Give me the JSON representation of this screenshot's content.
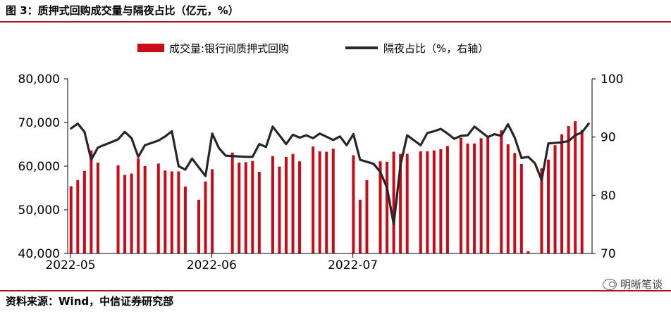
{
  "header": {
    "title": "图 3：质押式回购成交量与隔夜占比（亿元，%）"
  },
  "footer": {
    "source": "资料来源：Wind，中信证券研究部"
  },
  "watermark": {
    "text": "明晰笔谈",
    "icon": "wechat-icon"
  },
  "chart_data": {
    "type": "bar+line",
    "title": "",
    "left_axis": {
      "ylim": [
        40000,
        80000
      ],
      "ticks": [
        40000,
        50000,
        60000,
        70000,
        80000
      ],
      "tick_labels": [
        "40,000",
        "50,000",
        "60,000",
        "70,000",
        "80,000"
      ]
    },
    "right_axis": {
      "ylim": [
        70,
        100
      ],
      "ticks": [
        70,
        80,
        90,
        100
      ],
      "tick_labels": [
        "70",
        "80",
        "90",
        "100"
      ]
    },
    "x_tick_labels": [
      "2022-05",
      "2022-06",
      "2022-07"
    ],
    "x_tick_positions": [
      0,
      21,
      42
    ],
    "legend": {
      "placement": "top",
      "items": [
        {
          "label": "成交量:银行间质押式回购",
          "color": "#cc0a17",
          "kind": "bar"
        },
        {
          "label": "隔夜占比（%，右轴）",
          "color": "#262626",
          "kind": "line"
        }
      ]
    },
    "series": [
      {
        "name": "成交量:银行间质押式回购",
        "axis": "left",
        "color": "#cc0a17",
        "data": [
          [
            0,
            55400
          ],
          [
            1,
            56800
          ],
          [
            2,
            58900
          ],
          [
            3,
            63600
          ],
          [
            4,
            60800
          ],
          [
            7,
            60200
          ],
          [
            8,
            58000
          ],
          [
            9,
            58300
          ],
          [
            10,
            61800
          ],
          [
            11,
            60000
          ],
          [
            13,
            60600
          ],
          [
            14,
            59000
          ],
          [
            15,
            58800
          ],
          [
            16,
            58800
          ],
          [
            17,
            55300
          ],
          [
            19,
            52300
          ],
          [
            20,
            56500
          ],
          [
            21,
            59300
          ],
          [
            24,
            63100
          ],
          [
            25,
            60800
          ],
          [
            26,
            60900
          ],
          [
            27,
            61200
          ],
          [
            28,
            58700
          ],
          [
            30,
            62300
          ],
          [
            31,
            59900
          ],
          [
            32,
            62100
          ],
          [
            33,
            62800
          ],
          [
            34,
            61100
          ],
          [
            36,
            64500
          ],
          [
            37,
            63400
          ],
          [
            38,
            63300
          ],
          [
            39,
            64000
          ],
          [
            42,
            62500
          ],
          [
            43,
            52300
          ],
          [
            44,
            56800
          ],
          [
            46,
            61100
          ],
          [
            47,
            61000
          ],
          [
            48,
            63300
          ],
          [
            49,
            62800
          ],
          [
            50,
            62800
          ],
          [
            52,
            63400
          ],
          [
            53,
            63400
          ],
          [
            54,
            63600
          ],
          [
            55,
            63900
          ],
          [
            56,
            64600
          ],
          [
            58,
            66500
          ],
          [
            59,
            65200
          ],
          [
            60,
            65200
          ],
          [
            61,
            66400
          ],
          [
            62,
            66600
          ],
          [
            64,
            68200
          ],
          [
            65,
            65000
          ],
          [
            66,
            63000
          ],
          [
            67,
            60500
          ],
          [
            68,
            40500
          ],
          [
            70,
            59500
          ],
          [
            71,
            61500
          ],
          [
            72,
            64800
          ],
          [
            73,
            67300
          ],
          [
            74,
            69200
          ],
          [
            75,
            70300
          ],
          [
            76,
            68300
          ]
        ]
      },
      {
        "name": "隔夜占比（%，右轴）",
        "axis": "right",
        "color": "#262626",
        "data": [
          [
            0,
            91.5
          ],
          [
            1,
            92.3
          ],
          [
            2,
            90.9
          ],
          [
            3,
            86.1
          ],
          [
            4,
            88.2
          ],
          [
            7,
            89.6
          ],
          [
            8,
            90.9
          ],
          [
            9,
            89.8
          ],
          [
            10,
            86.6
          ],
          [
            11,
            88.6
          ],
          [
            13,
            89.4
          ],
          [
            14,
            90.1
          ],
          [
            15,
            91.0
          ],
          [
            16,
            85.0
          ],
          [
            17,
            84.4
          ],
          [
            18,
            86.3
          ],
          [
            20,
            83.3
          ],
          [
            21,
            90.6
          ],
          [
            22,
            88.1
          ],
          [
            23,
            86.8
          ],
          [
            26,
            86.6
          ],
          [
            27,
            86.6
          ],
          [
            28,
            88.8
          ],
          [
            29,
            88.3
          ],
          [
            30,
            91.8
          ],
          [
            32,
            88.8
          ],
          [
            33,
            90.4
          ],
          [
            34,
            89.9
          ],
          [
            35,
            90.3
          ],
          [
            36,
            89.8
          ],
          [
            37,
            90.6
          ],
          [
            39,
            89.5
          ],
          [
            40,
            90.1
          ],
          [
            41,
            88.6
          ],
          [
            42,
            90.5
          ],
          [
            43,
            86.1
          ],
          [
            45,
            85.4
          ],
          [
            46,
            84.0
          ],
          [
            47,
            81.3
          ],
          [
            48,
            75.0
          ],
          [
            49,
            85.2
          ],
          [
            50,
            90.3
          ],
          [
            52,
            88.6
          ],
          [
            53,
            90.7
          ],
          [
            54,
            91.0
          ],
          [
            55,
            91.4
          ],
          [
            56,
            90.6
          ],
          [
            57,
            89.7
          ],
          [
            58,
            90.2
          ],
          [
            59,
            90.3
          ],
          [
            60,
            91.8
          ],
          [
            61,
            90.9
          ],
          [
            62,
            90.0
          ],
          [
            63,
            90.5
          ],
          [
            64,
            90.2
          ],
          [
            65,
            92.2
          ],
          [
            66,
            89.9
          ],
          [
            67,
            86.4
          ],
          [
            68,
            86.6
          ],
          [
            69,
            85.5
          ],
          [
            70,
            82.6
          ],
          [
            71,
            88.9
          ],
          [
            72,
            89.0
          ],
          [
            73,
            89.1
          ],
          [
            74,
            89.3
          ],
          [
            75,
            90.3
          ],
          [
            76,
            90.8
          ],
          [
            77,
            92.3
          ]
        ]
      }
    ]
  }
}
